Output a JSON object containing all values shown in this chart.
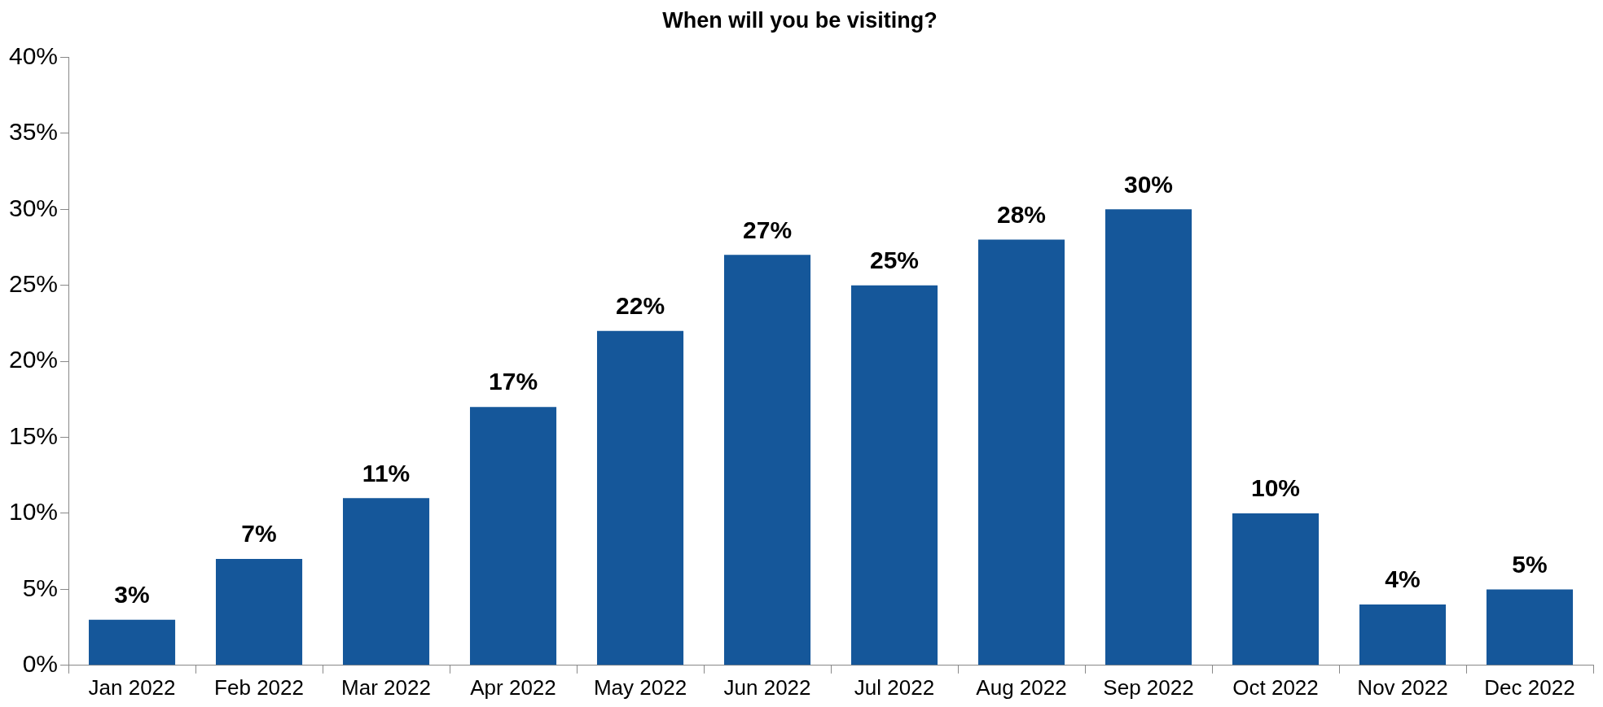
{
  "chart_data": {
    "type": "bar",
    "title": "When will you be visiting?",
    "categories": [
      "Jan 2022",
      "Feb 2022",
      "Mar 2022",
      "Apr 2022",
      "May 2022",
      "Jun 2022",
      "Jul 2022",
      "Aug 2022",
      "Sep 2022",
      "Oct 2022",
      "Nov 2022",
      "Dec 2022"
    ],
    "values": [
      3,
      7,
      11,
      17,
      22,
      27,
      25,
      28,
      30,
      10,
      4,
      5
    ],
    "value_labels": [
      "3%",
      "7%",
      "11%",
      "17%",
      "22%",
      "27%",
      "25%",
      "28%",
      "30%",
      "10%",
      "4%",
      "5%"
    ],
    "color": "#15579a",
    "ylim": [
      0,
      40
    ],
    "yticks": [
      {
        "value": 0,
        "label": "0%"
      },
      {
        "value": 5,
        "label": "5%"
      },
      {
        "value": 10,
        "label": "10%"
      },
      {
        "value": 15,
        "label": "15%"
      },
      {
        "value": 20,
        "label": "20%"
      },
      {
        "value": 25,
        "label": "25%"
      },
      {
        "value": 30,
        "label": "30%"
      },
      {
        "value": 35,
        "label": "35%"
      },
      {
        "value": 40,
        "label": "40%"
      }
    ],
    "grid": false,
    "legend": false
  }
}
